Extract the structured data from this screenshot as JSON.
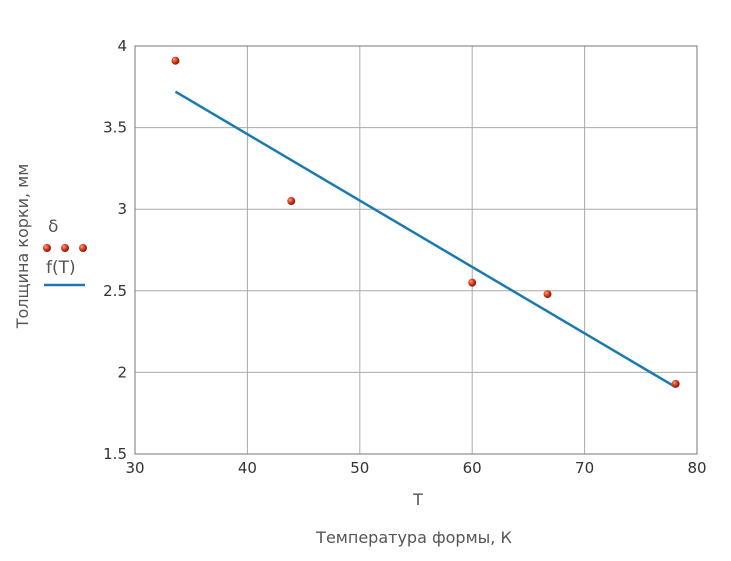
{
  "chart_data": {
    "type": "scatter",
    "xlabel": "T",
    "caption": "Температура формы, К",
    "ylabel": "Толщина корки, мм",
    "xlim": [
      30,
      80
    ],
    "ylim": [
      1.5,
      4
    ],
    "x_ticks": [
      "30",
      "40",
      "50",
      "60",
      "70",
      "80"
    ],
    "y_ticks": [
      "1.5",
      "2",
      "2.5",
      "3",
      "3.5",
      "4"
    ],
    "x_tick_values": [
      30,
      40,
      50,
      60,
      70,
      80
    ],
    "y_tick_values": [
      1.5,
      2,
      2.5,
      3,
      3.5,
      4
    ],
    "grid": true,
    "legend_position": "left",
    "series": [
      {
        "name": "δ",
        "kind": "points",
        "color": "#c0392b",
        "points": [
          {
            "x": 33.6,
            "y": 3.91
          },
          {
            "x": 43.9,
            "y": 3.05
          },
          {
            "x": 60.0,
            "y": 2.55
          },
          {
            "x": 66.7,
            "y": 2.48
          },
          {
            "x": 78.1,
            "y": 1.93
          }
        ]
      },
      {
        "name": "f(T)",
        "kind": "line",
        "color": "#1a7ab0",
        "points": [
          {
            "x": 33.6,
            "y": 3.72
          },
          {
            "x": 78.1,
            "y": 1.91
          }
        ]
      }
    ]
  }
}
